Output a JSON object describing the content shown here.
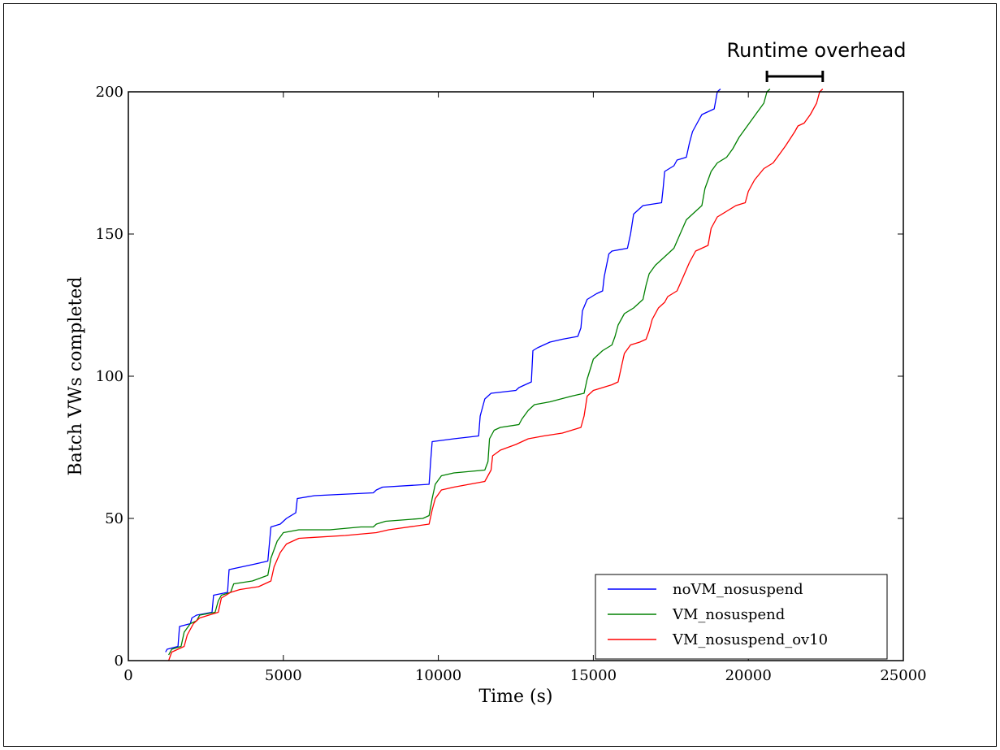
{
  "chart_data": {
    "type": "line",
    "xlabel": "Time (s)",
    "ylabel": "Batch VWs completed",
    "xlim": [
      0,
      25000
    ],
    "ylim": [
      0,
      200
    ],
    "x_ticks": [
      0,
      5000,
      10000,
      15000,
      20000,
      25000
    ],
    "y_ticks": [
      0,
      50,
      100,
      150,
      200
    ],
    "grid": false,
    "legend_position": "lower-right",
    "annotation": {
      "text": "Runtime overhead",
      "x_from": 20600,
      "x_to": 22400
    },
    "series": [
      {
        "name": "noVM_nosuspend",
        "color": "#0000ff",
        "points": [
          [
            1200,
            3
          ],
          [
            1250,
            4
          ],
          [
            1600,
            5
          ],
          [
            1650,
            12
          ],
          [
            2000,
            13
          ],
          [
            2050,
            15
          ],
          [
            2200,
            16
          ],
          [
            2700,
            17
          ],
          [
            2750,
            23
          ],
          [
            3200,
            24
          ],
          [
            3250,
            32
          ],
          [
            4100,
            34
          ],
          [
            4500,
            35
          ],
          [
            4550,
            41
          ],
          [
            4600,
            47
          ],
          [
            4900,
            48
          ],
          [
            5100,
            50
          ],
          [
            5400,
            52
          ],
          [
            5450,
            57
          ],
          [
            6000,
            58
          ],
          [
            7900,
            59
          ],
          [
            8000,
            60
          ],
          [
            8200,
            61
          ],
          [
            9700,
            62
          ],
          [
            9750,
            70
          ],
          [
            9800,
            77
          ],
          [
            10500,
            78
          ],
          [
            11300,
            79
          ],
          [
            11350,
            86
          ],
          [
            11500,
            92
          ],
          [
            11700,
            94
          ],
          [
            12500,
            95
          ],
          [
            12600,
            96
          ],
          [
            13000,
            98
          ],
          [
            13050,
            109
          ],
          [
            13200,
            110
          ],
          [
            13600,
            112
          ],
          [
            14000,
            113
          ],
          [
            14500,
            114
          ],
          [
            14600,
            117
          ],
          [
            14650,
            123
          ],
          [
            14800,
            127
          ],
          [
            15100,
            129
          ],
          [
            15300,
            130
          ],
          [
            15350,
            135
          ],
          [
            15500,
            143
          ],
          [
            15600,
            144
          ],
          [
            16100,
            145
          ],
          [
            16200,
            150
          ],
          [
            16300,
            157
          ],
          [
            16400,
            158
          ],
          [
            16600,
            160
          ],
          [
            17200,
            161
          ],
          [
            17250,
            166
          ],
          [
            17300,
            172
          ],
          [
            17600,
            174
          ],
          [
            17700,
            176
          ],
          [
            18000,
            177
          ],
          [
            18100,
            182
          ],
          [
            18200,
            186
          ],
          [
            18300,
            188
          ],
          [
            18400,
            190
          ],
          [
            18500,
            192
          ],
          [
            18900,
            194
          ],
          [
            19000,
            200
          ],
          [
            19100,
            201
          ]
        ]
      },
      {
        "name": "VM_nosuspend",
        "color": "#008000",
        "points": [
          [
            1300,
            2
          ],
          [
            1400,
            4
          ],
          [
            1700,
            5
          ],
          [
            1800,
            10
          ],
          [
            2000,
            13
          ],
          [
            2200,
            14
          ],
          [
            2300,
            16
          ],
          [
            2800,
            17
          ],
          [
            2900,
            21
          ],
          [
            3000,
            23
          ],
          [
            3300,
            24
          ],
          [
            3400,
            27
          ],
          [
            4000,
            28
          ],
          [
            4500,
            30
          ],
          [
            4600,
            36
          ],
          [
            4800,
            42
          ],
          [
            5000,
            45
          ],
          [
            5500,
            46
          ],
          [
            6500,
            46
          ],
          [
            7500,
            47
          ],
          [
            7900,
            47
          ],
          [
            8000,
            48
          ],
          [
            8300,
            49
          ],
          [
            9500,
            50
          ],
          [
            9700,
            51
          ],
          [
            9800,
            57
          ],
          [
            9900,
            62
          ],
          [
            10100,
            65
          ],
          [
            10500,
            66
          ],
          [
            11500,
            67
          ],
          [
            11600,
            70
          ],
          [
            11650,
            78
          ],
          [
            11800,
            81
          ],
          [
            12000,
            82
          ],
          [
            12600,
            83
          ],
          [
            12700,
            85
          ],
          [
            12900,
            88
          ],
          [
            13100,
            90
          ],
          [
            13600,
            91
          ],
          [
            14300,
            93
          ],
          [
            14700,
            94
          ],
          [
            14800,
            99
          ],
          [
            15000,
            106
          ],
          [
            15300,
            109
          ],
          [
            15600,
            111
          ],
          [
            15700,
            114
          ],
          [
            15800,
            118
          ],
          [
            16000,
            122
          ],
          [
            16300,
            124
          ],
          [
            16600,
            127
          ],
          [
            16700,
            132
          ],
          [
            16800,
            136
          ],
          [
            17000,
            139
          ],
          [
            17300,
            142
          ],
          [
            17600,
            145
          ],
          [
            17800,
            150
          ],
          [
            18000,
            155
          ],
          [
            18300,
            158
          ],
          [
            18500,
            160
          ],
          [
            18600,
            166
          ],
          [
            18800,
            172
          ],
          [
            19000,
            175
          ],
          [
            19300,
            177
          ],
          [
            19500,
            180
          ],
          [
            19700,
            184
          ],
          [
            19900,
            187
          ],
          [
            20100,
            190
          ],
          [
            20300,
            193
          ],
          [
            20500,
            196
          ],
          [
            20600,
            200
          ],
          [
            20700,
            201
          ]
        ]
      },
      {
        "name": "VM_nosuspend_ov10",
        "color": "#ff0000",
        "points": [
          [
            1300,
            0
          ],
          [
            1400,
            3
          ],
          [
            1800,
            5
          ],
          [
            1900,
            9
          ],
          [
            2100,
            13
          ],
          [
            2300,
            15
          ],
          [
            2600,
            16
          ],
          [
            2900,
            17
          ],
          [
            3000,
            22
          ],
          [
            3300,
            24
          ],
          [
            3600,
            25
          ],
          [
            4200,
            26
          ],
          [
            4600,
            28
          ],
          [
            4700,
            33
          ],
          [
            4900,
            38
          ],
          [
            5100,
            41
          ],
          [
            5500,
            43
          ],
          [
            7000,
            44
          ],
          [
            8000,
            45
          ],
          [
            8400,
            46
          ],
          [
            9700,
            48
          ],
          [
            9800,
            53
          ],
          [
            9900,
            57
          ],
          [
            10100,
            60
          ],
          [
            10500,
            61
          ],
          [
            11500,
            63
          ],
          [
            11700,
            67
          ],
          [
            11750,
            72
          ],
          [
            12000,
            74
          ],
          [
            12500,
            76
          ],
          [
            12700,
            77
          ],
          [
            12900,
            78
          ],
          [
            13400,
            79
          ],
          [
            14000,
            80
          ],
          [
            14600,
            82
          ],
          [
            14700,
            86
          ],
          [
            14800,
            93
          ],
          [
            15000,
            95
          ],
          [
            15600,
            97
          ],
          [
            15800,
            98
          ],
          [
            15900,
            103
          ],
          [
            16000,
            108
          ],
          [
            16200,
            111
          ],
          [
            16500,
            112
          ],
          [
            16700,
            113
          ],
          [
            16800,
            116
          ],
          [
            16900,
            120
          ],
          [
            17100,
            124
          ],
          [
            17300,
            126
          ],
          [
            17400,
            128
          ],
          [
            17700,
            130
          ],
          [
            17900,
            135
          ],
          [
            18100,
            140
          ],
          [
            18300,
            144
          ],
          [
            18700,
            146
          ],
          [
            18800,
            152
          ],
          [
            19000,
            156
          ],
          [
            19300,
            158
          ],
          [
            19600,
            160
          ],
          [
            19900,
            161
          ],
          [
            20000,
            165
          ],
          [
            20200,
            169
          ],
          [
            20500,
            173
          ],
          [
            20800,
            175
          ],
          [
            21000,
            178
          ],
          [
            21200,
            181
          ],
          [
            21500,
            186
          ],
          [
            21600,
            188
          ],
          [
            21800,
            189
          ],
          [
            22000,
            192
          ],
          [
            22200,
            196
          ],
          [
            22300,
            200
          ],
          [
            22400,
            201
          ]
        ]
      }
    ]
  }
}
